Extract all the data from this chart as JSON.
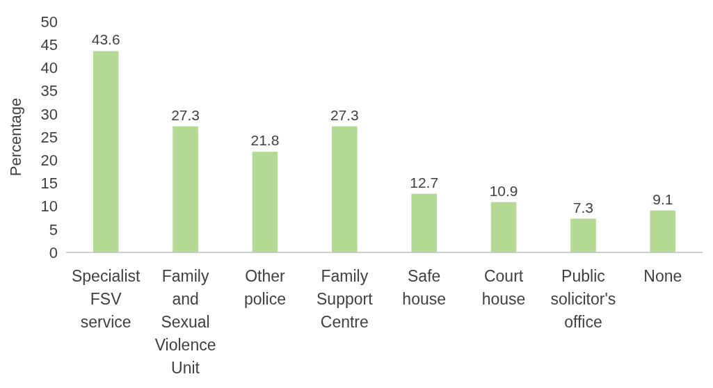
{
  "chart_data": {
    "type": "bar",
    "ylabel": "Percentage",
    "categories": [
      "Specialist FSV service",
      "Family and Sexual Violence Unit",
      "Other police",
      "Family Support Centre",
      "Safe house",
      "Court house",
      "Public solicitor's office",
      "None"
    ],
    "values": [
      43.6,
      27.3,
      21.8,
      27.3,
      12.7,
      10.9,
      7.3,
      9.1
    ],
    "color": "#b4da96",
    "ylim": [
      0,
      50
    ],
    "yticks": [
      0,
      5,
      10,
      15,
      20,
      25,
      30,
      35,
      40,
      45,
      50
    ],
    "grid": false,
    "data_labels": true
  }
}
